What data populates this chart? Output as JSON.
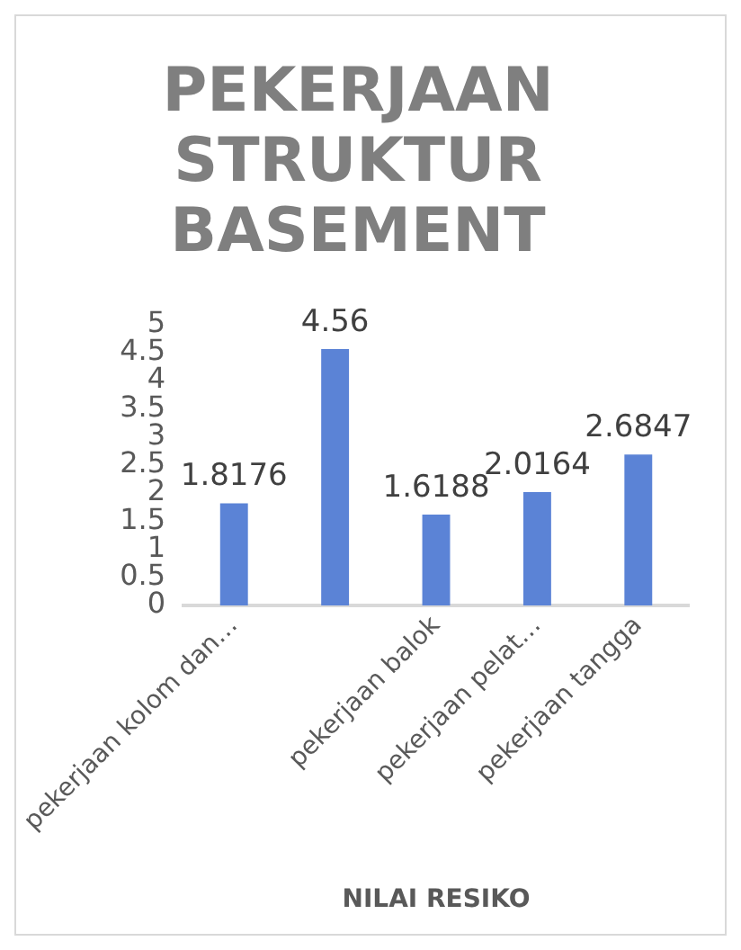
{
  "chart_data": {
    "type": "bar",
    "title": "PEKERJAAN STRUKTUR BASEMENT",
    "xlabel": "NILAI RESIKO",
    "categories": [
      "pekerjaan kolom dan…",
      null,
      "pekerjaan balok",
      "pekerjaan pelat…",
      "pekerjaan tangga"
    ],
    "values": [
      1.8176,
      4.56,
      1.6188,
      2.0164,
      2.6847
    ],
    "color": "#5b83d6",
    "ylim": [
      0,
      5
    ],
    "yticks": [
      0,
      0.5,
      1,
      1.5,
      2,
      2.5,
      3,
      3.5,
      4,
      4.5,
      5
    ],
    "data_labels": true,
    "grid": false,
    "legend": false
  }
}
